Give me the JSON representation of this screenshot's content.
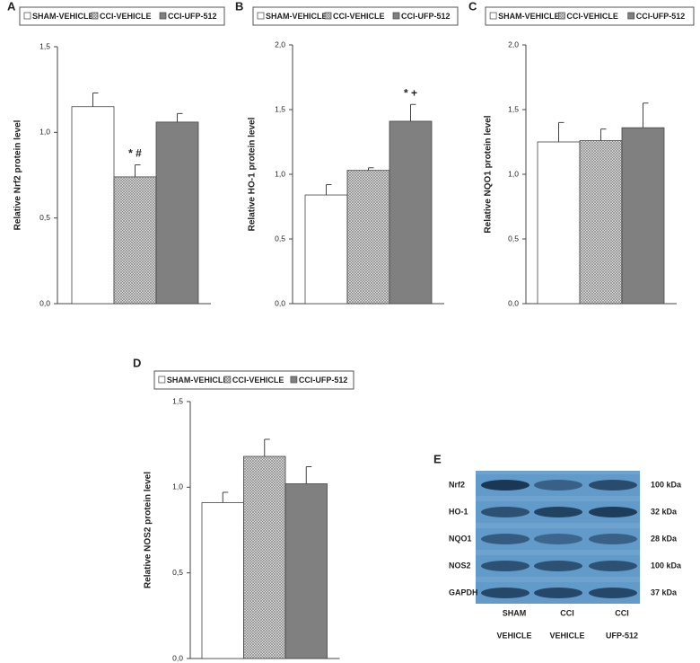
{
  "chart_data": [
    {
      "panel": "A",
      "type": "bar",
      "y_label": "Relative Nrf2 protein level",
      "ylim": [
        0,
        1.5
      ],
      "yticks": [
        {
          "value": 0,
          "label": "0,0"
        },
        {
          "value": 0.5,
          "label": "0,5"
        },
        {
          "value": 1,
          "label": "1,0"
        },
        {
          "value": 1.5,
          "label": "1,5"
        }
      ],
      "series": [
        {
          "name": "SHAM-VEHICLE",
          "color": "#ffffff",
          "values": [
            1.15
          ],
          "errors": [
            0.08
          ]
        },
        {
          "name": "CCI-VEHICLE",
          "color": "#d4d4d4",
          "hatch": true,
          "values": [
            0.74
          ],
          "errors": [
            0.07
          ],
          "annotation": "* #"
        },
        {
          "name": "CCI-UFP-512",
          "color": "#808080",
          "values": [
            1.06
          ],
          "errors": [
            0.05
          ]
        }
      ]
    },
    {
      "panel": "B",
      "type": "bar",
      "y_label": "Relative HO-1 protein level",
      "ylim": [
        0,
        2
      ],
      "yticks": [
        {
          "value": 0,
          "label": "0,0"
        },
        {
          "value": 0.5,
          "label": "0,5"
        },
        {
          "value": 1,
          "label": "1,0"
        },
        {
          "value": 1.5,
          "label": "1,5"
        },
        {
          "value": 2,
          "label": "2,0"
        }
      ],
      "series": [
        {
          "name": "SHAM-VEHICLE",
          "color": "#ffffff",
          "values": [
            0.84
          ],
          "errors": [
            0.08
          ]
        },
        {
          "name": "CCI-VEHICLE",
          "color": "#d4d4d4",
          "hatch": true,
          "values": [
            1.03
          ],
          "errors": [
            0.02
          ]
        },
        {
          "name": "CCI-UFP-512",
          "color": "#808080",
          "values": [
            1.41
          ],
          "errors": [
            0.13
          ],
          "annotation": "* +"
        }
      ]
    },
    {
      "panel": "C",
      "type": "bar",
      "y_label": "Relative NQO1 protein level",
      "ylim": [
        0,
        2
      ],
      "yticks": [
        {
          "value": 0,
          "label": "0,0"
        },
        {
          "value": 0.5,
          "label": "0,5"
        },
        {
          "value": 1,
          "label": "1,0"
        },
        {
          "value": 1.5,
          "label": "1,5"
        },
        {
          "value": 2,
          "label": "2,0"
        }
      ],
      "series": [
        {
          "name": "SHAM-VEHICLE",
          "color": "#ffffff",
          "values": [
            1.25
          ],
          "errors": [
            0.15
          ]
        },
        {
          "name": "CCI-VEHICLE",
          "color": "#d4d4d4",
          "hatch": true,
          "values": [
            1.26
          ],
          "errors": [
            0.09
          ]
        },
        {
          "name": "CCI-UFP-512",
          "color": "#808080",
          "values": [
            1.36
          ],
          "errors": [
            0.19
          ]
        }
      ]
    },
    {
      "panel": "D",
      "type": "bar",
      "y_label": "Relative NOS2 protein level",
      "ylim": [
        0,
        1.5
      ],
      "yticks": [
        {
          "value": 0,
          "label": "0,0"
        },
        {
          "value": 0.5,
          "label": "0,5"
        },
        {
          "value": 1,
          "label": "1,0"
        },
        {
          "value": 1.5,
          "label": "1,5"
        }
      ],
      "series": [
        {
          "name": "SHAM-VEHICLE",
          "color": "#ffffff",
          "values": [
            0.91
          ],
          "errors": [
            0.06
          ]
        },
        {
          "name": "CCI-VEHICLE",
          "color": "#d4d4d4",
          "hatch": true,
          "values": [
            1.18
          ],
          "errors": [
            0.1
          ]
        },
        {
          "name": "CCI-UFP-512",
          "color": "#808080",
          "values": [
            1.02
          ],
          "errors": [
            0.1
          ]
        }
      ]
    }
  ],
  "blot": {
    "panel": "E",
    "rows": [
      {
        "protein": "Nrf2",
        "size": "100 kDa"
      },
      {
        "protein": "HO-1",
        "size": "32 kDa"
      },
      {
        "protein": "NQO1",
        "size": "28 kDa"
      },
      {
        "protein": "NOS2",
        "size": "100 kDa"
      },
      {
        "protein": "GAPDH",
        "size": "37 kDa"
      }
    ],
    "lanes": [
      [
        "SHAM",
        "VEHICLE"
      ],
      [
        "CCI",
        "VEHICLE"
      ],
      [
        "CCI",
        "UFP-512"
      ]
    ]
  }
}
